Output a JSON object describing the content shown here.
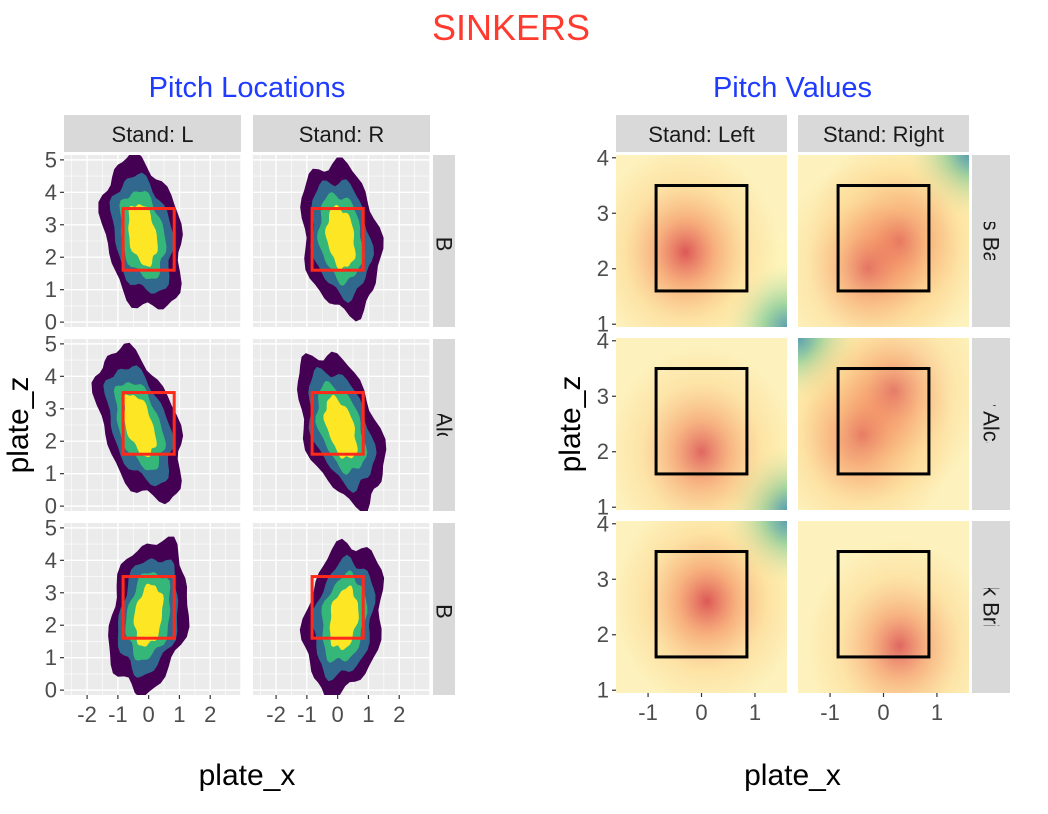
{
  "figure": {
    "title": "SINKERS",
    "title_color": "#ff3b2f",
    "subtitle_color": "#1f3bff"
  },
  "chart_data": [
    {
      "type": "heatmap",
      "subtitle": "Pitch Locations",
      "xlabel": "plate_x",
      "ylabel": "plate_z",
      "col_strips": [
        "Stand: L",
        "Stand: R"
      ],
      "row_strips": [
        "Chris Bassitt",
        "Sandy Alcantara",
        "Zack Britton"
      ],
      "xlim": [
        -2.75,
        3.0
      ],
      "ylim": [
        -0.15,
        5.15
      ],
      "x_ticks": [
        -2,
        -1,
        0,
        1,
        2
      ],
      "y_ticks": [
        0,
        1,
        2,
        3,
        4,
        5
      ],
      "zone_color": "#ff2a1a",
      "density_levels": [
        "#440154",
        "#31688e",
        "#35b779",
        "#fde725"
      ],
      "strike_zone": {
        "x": [
          -0.83,
          0.83
        ],
        "z": [
          1.6,
          3.5
        ]
      },
      "panels": [
        [
          {
            "cx": -0.2,
            "cz": 2.7,
            "tilt": 0.25
          },
          {
            "cx": 0.1,
            "cz": 2.6,
            "tilt": 0.2
          }
        ],
        [
          {
            "cx": -0.3,
            "cz": 2.5,
            "tilt": 0.45
          },
          {
            "cx": 0.1,
            "cz": 2.4,
            "tilt": 0.45
          }
        ],
        [
          {
            "cx": 0.0,
            "cz": 2.3,
            "tilt": -0.2
          },
          {
            "cx": 0.2,
            "cz": 2.2,
            "tilt": -0.2
          }
        ]
      ]
    },
    {
      "type": "heatmap",
      "subtitle": "Pitch Values",
      "xlabel": "plate_x",
      "ylabel": "plate_z",
      "col_strips": [
        "Stand: Left",
        "Stand: Right"
      ],
      "row_strips": [
        "Chris Bassitt",
        "Sandy Alcantara",
        "Zack Britton"
      ],
      "xlim": [
        -1.6,
        1.6
      ],
      "ylim": [
        0.95,
        4.05
      ],
      "x_ticks": [
        -1,
        0,
        1
      ],
      "y_ticks": [
        1,
        2,
        3,
        4
      ],
      "zone_color": "#000000",
      "value_scale": [
        "#5e9fb0",
        "#9fd4a0",
        "#fdf7b3",
        "#fdcf86",
        "#f49061",
        "#d9464b"
      ],
      "strike_zone": {
        "x": [
          -0.85,
          0.85
        ],
        "z": [
          1.6,
          3.5
        ]
      },
      "panels": [
        [
          {
            "hot": [
              [
                -0.3,
                2.3,
                1.0
              ]
            ],
            "cool_corner": "br"
          },
          {
            "hot": [
              [
                0.3,
                2.5,
                1.0
              ],
              [
                -0.3,
                2.0,
                0.7
              ]
            ],
            "cool_corner": "tr"
          }
        ],
        [
          {
            "hot": [
              [
                0.0,
                2.0,
                0.9
              ]
            ],
            "cool_corner": "br"
          },
          {
            "hot": [
              [
                -0.4,
                2.3,
                1.0
              ],
              [
                0.2,
                3.1,
                0.7
              ]
            ],
            "cool_corner": "tl"
          }
        ],
        [
          {
            "hot": [
              [
                0.1,
                2.6,
                1.0
              ]
            ],
            "cool_corner": "tr"
          },
          {
            "hot": [
              [
                0.3,
                1.8,
                0.9
              ]
            ],
            "cool_corner": "none"
          }
        ]
      ]
    }
  ]
}
